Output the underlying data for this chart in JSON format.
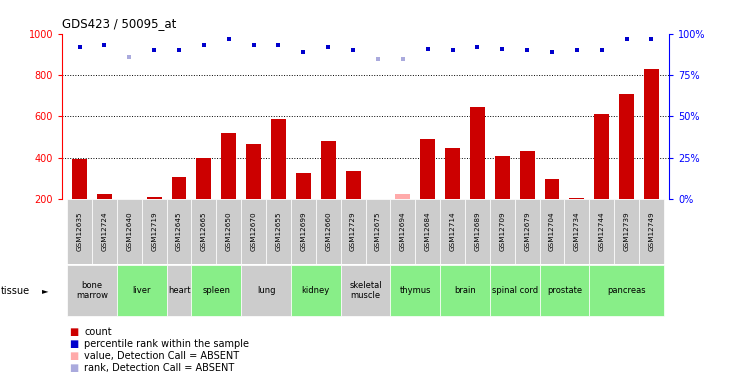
{
  "title": "GDS423 / 50095_at",
  "samples": [
    "GSM12635",
    "GSM12724",
    "GSM12640",
    "GSM12719",
    "GSM12645",
    "GSM12665",
    "GSM12650",
    "GSM12670",
    "GSM12655",
    "GSM12699",
    "GSM12660",
    "GSM12729",
    "GSM12675",
    "GSM12694",
    "GSM12684",
    "GSM12714",
    "GSM12689",
    "GSM12709",
    "GSM12679",
    "GSM12704",
    "GSM12734",
    "GSM12744",
    "GSM12739",
    "GSM12749"
  ],
  "bar_values": [
    395,
    225,
    185,
    210,
    305,
    400,
    520,
    465,
    585,
    325,
    480,
    335,
    185,
    225,
    490,
    445,
    645,
    405,
    430,
    295,
    205,
    610,
    710,
    830
  ],
  "absent_bars": [
    false,
    false,
    true,
    false,
    false,
    false,
    false,
    false,
    false,
    false,
    false,
    false,
    true,
    true,
    false,
    false,
    false,
    false,
    false,
    false,
    false,
    false,
    false,
    false
  ],
  "rank_values": [
    92,
    93,
    86,
    90,
    90,
    93,
    97,
    93,
    93,
    89,
    92,
    90,
    85,
    85,
    91,
    90,
    92,
    91,
    90,
    89,
    90,
    90,
    97,
    97
  ],
  "absent_ranks": [
    false,
    false,
    true,
    false,
    false,
    false,
    false,
    false,
    false,
    false,
    false,
    false,
    true,
    true,
    false,
    false,
    false,
    false,
    false,
    false,
    false,
    false,
    false,
    false
  ],
  "tissues": [
    {
      "name": "bone\nmarrow",
      "start": 0,
      "end": 2,
      "color": "#cccccc"
    },
    {
      "name": "liver",
      "start": 2,
      "end": 4,
      "color": "#88ee88"
    },
    {
      "name": "heart",
      "start": 4,
      "end": 5,
      "color": "#cccccc"
    },
    {
      "name": "spleen",
      "start": 5,
      "end": 7,
      "color": "#88ee88"
    },
    {
      "name": "lung",
      "start": 7,
      "end": 9,
      "color": "#cccccc"
    },
    {
      "name": "kidney",
      "start": 9,
      "end": 11,
      "color": "#88ee88"
    },
    {
      "name": "skeletal\nmuscle",
      "start": 11,
      "end": 13,
      "color": "#cccccc"
    },
    {
      "name": "thymus",
      "start": 13,
      "end": 15,
      "color": "#88ee88"
    },
    {
      "name": "brain",
      "start": 15,
      "end": 17,
      "color": "#88ee88"
    },
    {
      "name": "spinal cord",
      "start": 17,
      "end": 19,
      "color": "#88ee88"
    },
    {
      "name": "prostate",
      "start": 19,
      "end": 21,
      "color": "#88ee88"
    },
    {
      "name": "pancreas",
      "start": 21,
      "end": 24,
      "color": "#88ee88"
    }
  ],
  "bar_color_normal": "#cc0000",
  "bar_color_absent": "#ffaaaa",
  "rank_color_normal": "#0000cc",
  "rank_color_absent": "#aaaadd",
  "ylim_left": [
    200,
    1000
  ],
  "ylim_right": [
    0,
    100
  ],
  "yticks_left": [
    200,
    400,
    600,
    800,
    1000
  ],
  "yticks_right": [
    0,
    25,
    50,
    75,
    100
  ],
  "grid_values": [
    400,
    600,
    800
  ],
  "background_color": "#ffffff"
}
